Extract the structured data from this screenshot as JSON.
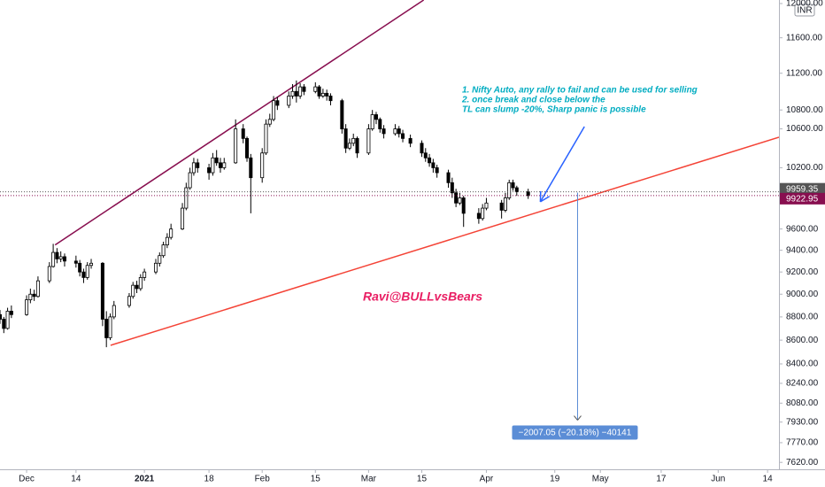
{
  "chart_data": {
    "type": "candlestick",
    "currency": "INR",
    "log_scale": true,
    "grid": false,
    "up_color": "#ffffff",
    "down_color": "#000000",
    "wick_color": "#000000",
    "xlim": [
      -7,
      198
    ],
    "ylim": [
      7568,
      12042
    ],
    "xticks": [
      {
        "value": 0,
        "label": "Dec"
      },
      {
        "value": 13,
        "label": "14"
      },
      {
        "value": 31,
        "label": "2021"
      },
      {
        "value": 48,
        "label": "18"
      },
      {
        "value": 62,
        "label": "Feb"
      },
      {
        "value": 76,
        "label": "15"
      },
      {
        "value": 90,
        "label": "Mar"
      },
      {
        "value": 104,
        "label": "15"
      },
      {
        "value": 121,
        "label": "Apr"
      },
      {
        "value": 139,
        "label": "19"
      },
      {
        "value": 151,
        "label": "May"
      },
      {
        "value": 167,
        "label": "17"
      },
      {
        "value": 182,
        "label": "Jun"
      },
      {
        "value": 195,
        "label": "14"
      }
    ],
    "yticks": [
      {
        "value": 12000,
        "label": "12000.00"
      },
      {
        "value": 11600,
        "label": "11600.00"
      },
      {
        "value": 11200,
        "label": "11200.00"
      },
      {
        "value": 10800,
        "label": "10800.00"
      },
      {
        "value": 10600,
        "label": "10600.00"
      },
      {
        "value": 10200,
        "label": "10200.00"
      },
      {
        "value": 9600,
        "label": "9600.00"
      },
      {
        "value": 9400,
        "label": "9400.00"
      },
      {
        "value": 9200,
        "label": "9200.00"
      },
      {
        "value": 9000,
        "label": "9000.00"
      },
      {
        "value": 8800,
        "label": "8800.00"
      },
      {
        "value": 8600,
        "label": "8600.00"
      },
      {
        "value": 8400,
        "label": "8400.00"
      },
      {
        "value": 8240,
        "label": "8240.00"
      },
      {
        "value": 8080,
        "label": "8080.00"
      },
      {
        "value": 7930,
        "label": "7930.00"
      },
      {
        "value": 7770,
        "label": "7770.00"
      },
      {
        "value": 7620,
        "label": "7620.00"
      }
    ],
    "x": [
      -7,
      -6,
      -5,
      -4,
      0,
      1,
      2,
      3,
      6,
      7,
      8,
      9,
      10,
      13,
      14,
      15,
      16,
      17,
      20,
      21,
      22,
      23,
      27,
      28,
      29,
      30,
      31,
      34,
      35,
      36,
      37,
      38,
      41,
      42,
      43,
      44,
      45,
      48,
      49,
      50,
      51,
      52,
      55,
      57,
      58,
      59,
      62,
      63,
      64,
      65,
      66,
      69,
      70,
      71,
      72,
      73,
      76,
      77,
      78,
      79,
      80,
      83,
      84,
      85,
      86,
      87,
      90,
      91,
      92,
      93,
      94,
      97,
      98,
      99,
      101,
      104,
      105,
      106,
      107,
      108,
      111,
      112,
      113,
      114,
      115,
      119,
      120,
      121,
      125,
      126,
      127,
      128,
      129,
      132
    ],
    "open": [
      8820,
      8780,
      8700,
      8850,
      8820,
      8950,
      9000,
      8980,
      9120,
      9250,
      9380,
      9320,
      9340,
      9300,
      9280,
      9200,
      9150,
      9260,
      9280,
      8780,
      8620,
      8800,
      8900,
      8980,
      9080,
      9050,
      9150,
      9200,
      9280,
      9350,
      9450,
      9520,
      9600,
      9800,
      10000,
      10150,
      10250,
      10200,
      10150,
      10300,
      10250,
      10200,
      10250,
      10600,
      10500,
      10300,
      10100,
      10350,
      10650,
      10700,
      10900,
      10850,
      10950,
      11000,
      10950,
      11050,
      11000,
      11050,
      10950,
      10980,
      10950,
      10900,
      10600,
      10400,
      10450,
      10500,
      10350,
      10600,
      10750,
      10700,
      10600,
      10550,
      10600,
      10550,
      10500,
      10450,
      10350,
      10300,
      10250,
      10200,
      10150,
      10050,
      9950,
      9850,
      9900,
      9750,
      9700,
      9800,
      9850,
      9780,
      9900,
      10050,
      10000,
      9960
    ],
    "high": [
      8860,
      8800,
      8880,
      8900,
      8990,
      9050,
      9040,
      9160,
      9290,
      9460,
      9420,
      9390,
      9370,
      9350,
      9310,
      9230,
      9290,
      9320,
      9290,
      8850,
      8830,
      8940,
      9010,
      9110,
      9120,
      9180,
      9230,
      9320,
      9380,
      9480,
      9560,
      9650,
      9850,
      10050,
      10200,
      10300,
      10290,
      10240,
      10350,
      10380,
      10300,
      10300,
      10700,
      10650,
      10520,
      10340,
      10400,
      10700,
      10760,
      10950,
      10940,
      11000,
      11080,
      11120,
      11090,
      11080,
      11100,
      11070,
      11030,
      11020,
      10980,
      10920,
      10650,
      10500,
      10550,
      10520,
      10650,
      10800,
      10780,
      10720,
      10640,
      10650,
      10630,
      10590,
      10540,
      10480,
      10400,
      10340,
      10290,
      10230,
      10180,
      10100,
      9990,
      9950,
      9920,
      9800,
      9840,
      9900,
      9880,
      9950,
      10080,
      10080,
      10020,
      9990
    ],
    "low": [
      8740,
      8660,
      8690,
      8790,
      8810,
      8920,
      8940,
      8970,
      9100,
      9240,
      9280,
      9290,
      9250,
      9240,
      9160,
      9100,
      9130,
      9230,
      8720,
      8540,
      8600,
      8780,
      8880,
      8960,
      9010,
      9030,
      9120,
      9180,
      9250,
      9330,
      9420,
      9500,
      9590,
      9780,
      9980,
      10120,
      10150,
      10080,
      10120,
      10220,
      10150,
      10180,
      10240,
      10450,
      10260,
      9750,
      10050,
      10330,
      10620,
      10680,
      10800,
      10820,
      10920,
      10880,
      10920,
      10960,
      10980,
      10920,
      10930,
      10900,
      10850,
      10550,
      10350,
      10380,
      10420,
      10300,
      10330,
      10580,
      10650,
      10560,
      10500,
      10530,
      10510,
      10460,
      10410,
      10310,
      10260,
      10210,
      10150,
      10100,
      10000,
      9900,
      9810,
      9830,
      9620,
      9650,
      9680,
      9780,
      9700,
      9760,
      9880,
      9970,
      9920,
      9890
    ],
    "close": [
      8780,
      8700,
      8850,
      8820,
      8950,
      9000,
      8980,
      9120,
      9250,
      9380,
      9320,
      9340,
      9300,
      9280,
      9200,
      9150,
      9260,
      9280,
      8780,
      8620,
      8800,
      8900,
      8980,
      9080,
      9050,
      9150,
      9200,
      9280,
      9350,
      9450,
      9520,
      9600,
      9800,
      10000,
      10150,
      10250,
      10200,
      10150,
      10300,
      10250,
      10200,
      10250,
      10600,
      10500,
      10300,
      10100,
      10350,
      10650,
      10700,
      10900,
      10850,
      10950,
      11000,
      10950,
      11050,
      11000,
      11050,
      10950,
      10980,
      10950,
      10900,
      10600,
      10400,
      10450,
      10500,
      10350,
      10600,
      10750,
      10700,
      10600,
      10550,
      10600,
      10550,
      10500,
      10450,
      10350,
      10300,
      10250,
      10200,
      10150,
      10050,
      9950,
      9850,
      9900,
      9750,
      9700,
      9800,
      9850,
      9780,
      9900,
      10050,
      10000,
      9960,
      9922.95
    ],
    "price_lines": [
      {
        "value": 9959.35,
        "color": "#555555"
      },
      {
        "value": 9922.95,
        "color": "#880e4f"
      }
    ],
    "trendlines": [
      {
        "color": "#880e4f",
        "from": [
          7.5,
          9450
        ],
        "to": [
          104.5,
          12042
        ]
      },
      {
        "color": "#f44336",
        "from": [
          22.1,
          8556
        ],
        "to": [
          198,
          10513
        ]
      }
    ],
    "arrow": {
      "color": "#2962ff",
      "from": [
        146.8,
        10624
      ],
      "to": [
        135.2,
        9862
      ]
    },
    "measure": {
      "color": "#5b8dd6",
      "x": 145,
      "from": 9952,
      "to": 7945,
      "label": "−2007.05 (−20.18%) −40141"
    },
    "annotation": [
      "1. Nifty Auto, any rally to fail and can be used for selling",
      "2. once break and close below the",
      "TL can slump -20%, Sharp panic is possible"
    ],
    "watermark": "Ravi@BULLvsBears"
  }
}
